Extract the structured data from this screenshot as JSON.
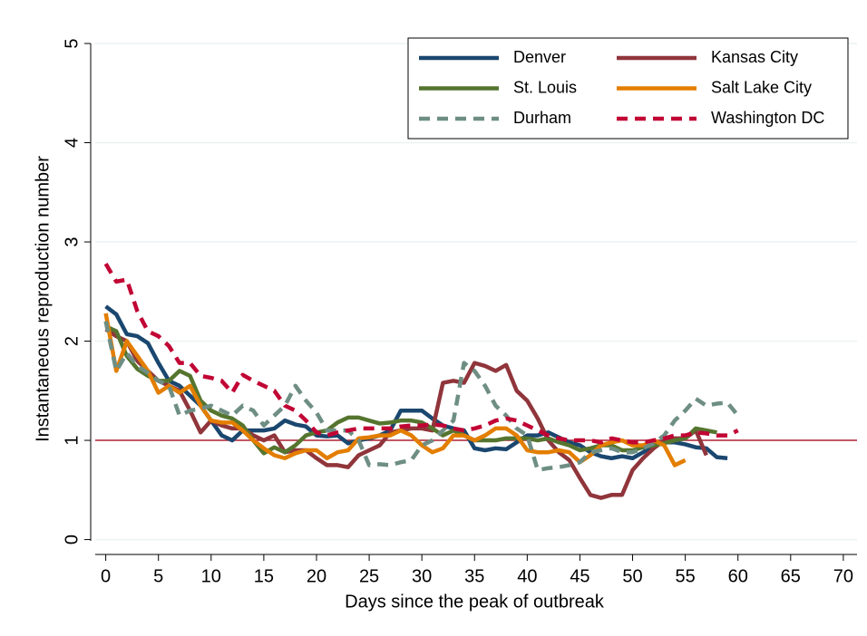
{
  "chart_data": {
    "type": "line",
    "xlabel": "Days since the peak of outbreak",
    "ylabel": "Instantaneous reproduction number",
    "xlim": [
      -1,
      71.3
    ],
    "ylim": [
      -0.15,
      5
    ],
    "xticks": [
      0,
      5,
      10,
      15,
      20,
      25,
      30,
      35,
      40,
      45,
      50,
      55,
      60,
      65,
      70
    ],
    "yticks": [
      0,
      1,
      2,
      3,
      4,
      5
    ],
    "grid": true,
    "reference_line": {
      "value": 1,
      "color": "#b22234"
    },
    "legend_position": "upper right",
    "x": [
      0,
      1,
      2,
      3,
      4,
      5,
      6,
      7,
      8,
      9,
      10,
      11,
      12,
      13,
      14,
      15,
      16,
      17,
      18,
      19,
      20,
      21,
      22,
      23,
      24,
      25,
      26,
      27,
      28,
      29,
      30,
      31,
      32,
      33,
      34,
      35,
      36,
      37,
      38,
      39,
      40,
      41,
      42,
      43,
      44,
      45,
      46,
      47,
      48,
      49,
      50,
      51,
      52,
      53,
      54,
      55,
      56,
      57,
      58,
      59,
      60
    ],
    "series": [
      {
        "name": "Denver",
        "color": "#1a476f",
        "dashed": false,
        "values": [
          2.35,
          2.27,
          2.07,
          2.05,
          1.98,
          1.78,
          1.6,
          1.55,
          1.45,
          1.35,
          1.2,
          1.05,
          1.0,
          1.1,
          1.1,
          1.1,
          1.12,
          1.2,
          1.16,
          1.14,
          1.05,
          1.04,
          1.05,
          0.97,
          1.0,
          1.02,
          1.05,
          1.1,
          1.3,
          1.3,
          1.3,
          1.22,
          1.15,
          1.12,
          1.1,
          0.92,
          0.9,
          0.92,
          0.91,
          0.98,
          1.05,
          1.05,
          1.08,
          1.03,
          0.98,
          0.95,
          0.88,
          0.84,
          0.82,
          0.84,
          0.82,
          0.88,
          0.95,
          0.98,
          0.98,
          0.96,
          0.93,
          0.92,
          0.83,
          0.82,
          null
        ]
      },
      {
        "name": "Kansas City",
        "color": "#90353b",
        "dashed": false,
        "values": [
          2.12,
          2.05,
          2.0,
          1.8,
          1.7,
          1.6,
          1.55,
          1.5,
          1.3,
          1.08,
          1.2,
          1.15,
          1.12,
          1.12,
          1.05,
          1.0,
          1.05,
          0.88,
          0.9,
          0.9,
          0.82,
          0.75,
          0.75,
          0.73,
          0.85,
          0.9,
          0.95,
          1.08,
          1.1,
          1.12,
          1.12,
          1.1,
          1.58,
          1.6,
          1.58,
          1.78,
          1.75,
          1.7,
          1.76,
          1.5,
          1.4,
          1.22,
          1.0,
          0.88,
          0.8,
          0.62,
          0.45,
          0.42,
          0.45,
          0.45,
          0.7,
          0.82,
          0.92,
          1.0,
          1.02,
          1.02,
          1.1,
          0.85,
          null,
          null,
          null
        ]
      },
      {
        "name": "St. Louis",
        "color": "#55752f",
        "dashed": false,
        "values": [
          2.15,
          2.1,
          1.85,
          1.72,
          1.65,
          1.6,
          1.6,
          1.7,
          1.65,
          1.4,
          1.3,
          1.25,
          1.22,
          1.15,
          1.0,
          0.87,
          0.93,
          0.88,
          0.95,
          1.05,
          1.08,
          1.1,
          1.18,
          1.23,
          1.23,
          1.2,
          1.17,
          1.18,
          1.2,
          1.2,
          1.18,
          1.12,
          1.05,
          1.1,
          1.05,
          1.0,
          1.0,
          1.0,
          1.02,
          1.02,
          1.02,
          1.0,
          1.02,
          0.98,
          0.95,
          0.9,
          0.92,
          0.95,
          0.95,
          0.9,
          0.9,
          0.93,
          0.95,
          0.97,
          1.0,
          1.02,
          1.12,
          1.1,
          1.08,
          null,
          null
        ]
      },
      {
        "name": "Salt Lake City",
        "color": "#e37e00",
        "dashed": false,
        "values": [
          2.28,
          1.7,
          2.0,
          1.85,
          1.7,
          1.48,
          1.55,
          1.48,
          1.55,
          1.35,
          1.2,
          1.18,
          1.18,
          1.1,
          1.0,
          0.92,
          0.85,
          0.82,
          0.87,
          0.9,
          0.9,
          0.82,
          0.88,
          0.9,
          1.02,
          1.03,
          1.05,
          1.05,
          1.1,
          1.05,
          0.95,
          0.88,
          0.92,
          1.05,
          1.05,
          1.0,
          1.05,
          1.12,
          1.12,
          1.05,
          0.9,
          0.88,
          0.88,
          0.9,
          0.88,
          0.78,
          0.85,
          0.95,
          0.98,
          1.0,
          0.95,
          0.95,
          1.0,
          0.95,
          0.75,
          0.8,
          null,
          null,
          null,
          null,
          null
        ]
      },
      {
        "name": "Durham",
        "color": "#6e8e84",
        "dashed": true,
        "values": [
          2.2,
          1.7,
          1.88,
          1.75,
          1.68,
          1.6,
          1.55,
          1.25,
          1.3,
          1.32,
          1.35,
          1.3,
          1.25,
          1.35,
          1.3,
          1.15,
          1.25,
          1.35,
          1.55,
          1.4,
          1.28,
          1.1,
          1.1,
          1.1,
          1.0,
          0.75,
          0.76,
          0.75,
          0.78,
          0.8,
          0.95,
          1.0,
          1.1,
          1.2,
          1.78,
          1.7,
          1.55,
          1.35,
          1.25,
          1.12,
          1.05,
          0.7,
          0.72,
          0.73,
          0.75,
          0.78,
          0.88,
          0.9,
          0.92,
          0.88,
          0.88,
          0.92,
          0.97,
          1.05,
          1.2,
          1.3,
          1.42,
          1.35,
          1.37,
          1.38,
          1.25
        ]
      },
      {
        "name": "Washington DC",
        "color": "#c10534",
        "dashed": true,
        "values": [
          2.78,
          2.6,
          2.62,
          2.3,
          2.1,
          2.05,
          1.95,
          1.78,
          1.78,
          1.65,
          1.63,
          1.6,
          1.48,
          1.66,
          1.6,
          1.55,
          1.5,
          1.35,
          1.3,
          1.2,
          1.08,
          1.05,
          1.08,
          1.1,
          1.12,
          1.12,
          1.12,
          1.12,
          1.14,
          1.15,
          1.15,
          1.16,
          1.15,
          1.12,
          1.1,
          1.12,
          1.15,
          1.2,
          1.22,
          1.2,
          1.15,
          1.1,
          1.05,
          1.02,
          1.0,
          1.0,
          1.0,
          0.98,
          1.02,
          1.0,
          0.98,
          0.98,
          1.0,
          1.02,
          1.05,
          1.05,
          1.08,
          1.07,
          1.05,
          1.05,
          1.1
        ]
      }
    ]
  }
}
